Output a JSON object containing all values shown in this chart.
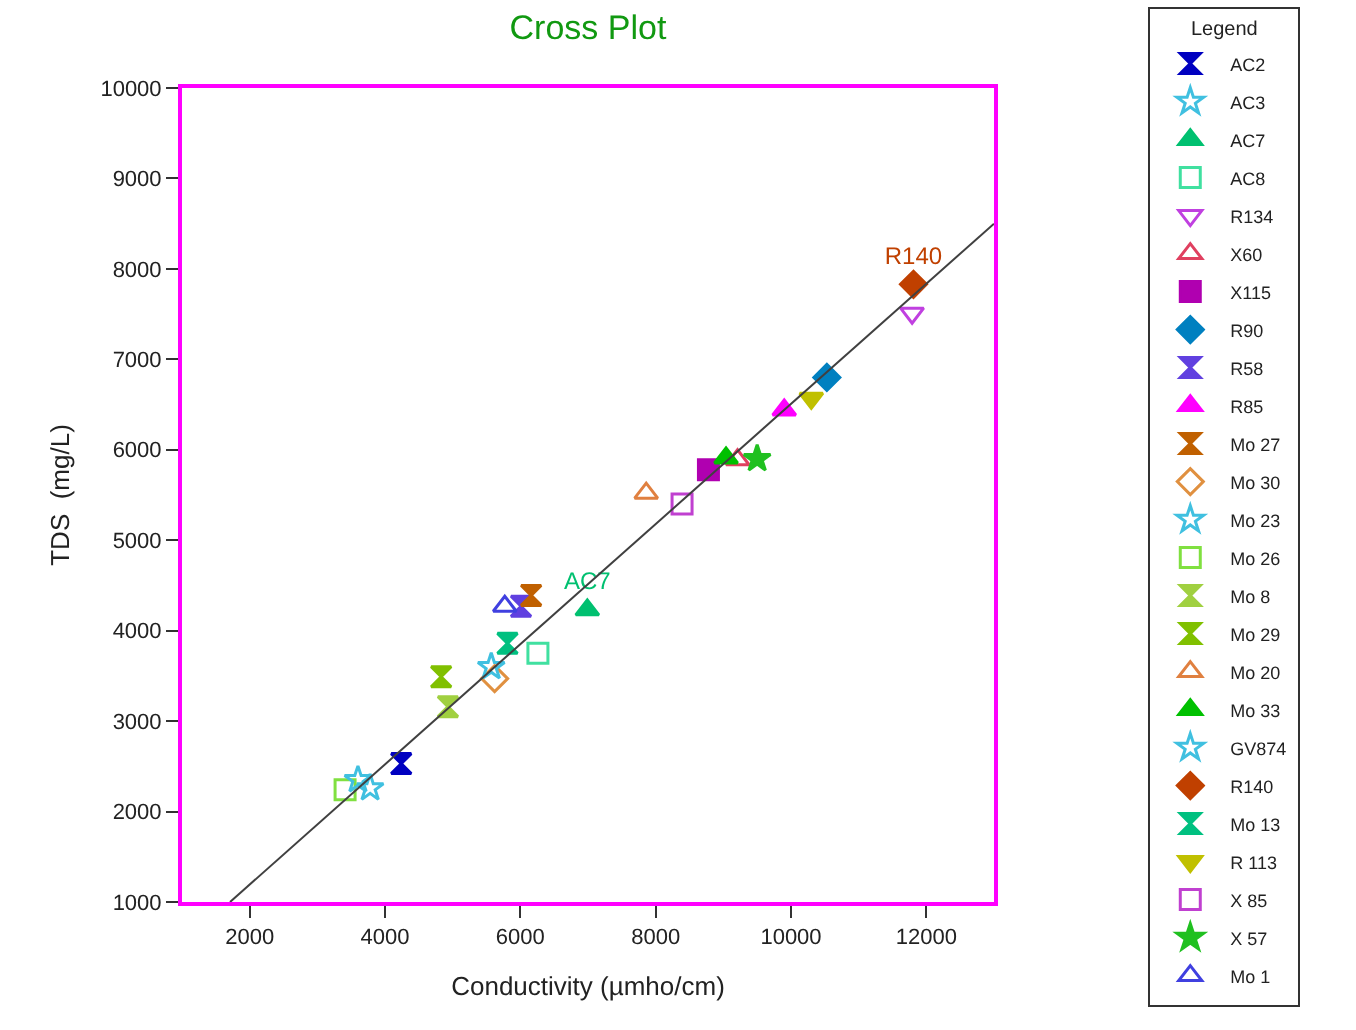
{
  "chart_data": {
    "type": "scatter",
    "title": "Cross Plot",
    "xlabel": "Conductivity (µmho/cm)",
    "ylabel": "TDS  (mg/L)",
    "legend_title": "Legend",
    "xlim": [
      1000,
      13000
    ],
    "xticks": [
      2000,
      4000,
      6000,
      8000,
      10000,
      12000
    ],
    "ylim": [
      1000,
      10000
    ],
    "yticks": [
      1000,
      2000,
      3000,
      4000,
      5000,
      6000,
      7000,
      8000,
      9000,
      10000
    ],
    "grid": false,
    "legend": "right",
    "series": [
      {
        "name": "AC2",
        "color": "#0000c0",
        "x": [
          4240
        ],
        "values": [
          2530
        ]
      },
      {
        "name": "AC3",
        "color": "#40c0e0",
        "marker": "star-open",
        "x": [
          3780
        ],
        "values": [
          2260
        ]
      },
      {
        "name": "AC7",
        "color": "#00c070",
        "marker": "triangle-up",
        "x": [
          6990
        ],
        "values": [
          4230
        ],
        "value_labels": [
          "AC7"
        ]
      },
      {
        "name": "AC8",
        "color": "#40e0a0",
        "marker": "square-open",
        "x": [
          6260
        ],
        "values": [
          3750
        ]
      },
      {
        "name": "R134",
        "color": "#c040e0",
        "marker": "triangle-down-open",
        "x": [
          11790
        ],
        "values": [
          7510
        ]
      },
      {
        "name": "X60",
        "color": "#e04060",
        "marker": "triangle-up-open",
        "x": [
          9210
        ],
        "values": [
          5890
        ]
      },
      {
        "name": "X115",
        "color": "#b000b0",
        "marker": "square",
        "x": [
          8780
        ],
        "values": [
          5780
        ]
      },
      {
        "name": "R90",
        "color": "#0080c0",
        "marker": "diamond",
        "x": [
          10530
        ],
        "values": [
          6800
        ]
      },
      {
        "name": "R58",
        "color": "#6040e0",
        "x": [
          6010
        ],
        "values": [
          4270
        ]
      },
      {
        "name": "R85",
        "color": "#ff00ff",
        "marker": "triangle-up",
        "x": [
          9900
        ],
        "values": [
          6440
        ]
      },
      {
        "name": "Mo 27",
        "color": "#c06000",
        "x": [
          6160
        ],
        "values": [
          4390
        ]
      },
      {
        "name": "Mo 30",
        "color": "#e09040",
        "marker": "diamond-open",
        "x": [
          5620
        ],
        "values": [
          3470
        ]
      },
      {
        "name": "Mo 23",
        "color": "#40c0e0",
        "marker": "star-open",
        "x": [
          5570
        ],
        "values": [
          3600
        ]
      },
      {
        "name": "Mo 26",
        "color": "#80e040",
        "marker": "square-open",
        "x": [
          3410
        ],
        "values": [
          2240
        ]
      },
      {
        "name": "Mo 8",
        "color": "#a0d040",
        "x": [
          4930
        ],
        "values": [
          3160
        ]
      },
      {
        "name": "Mo 29",
        "color": "#80c000",
        "x": [
          4830
        ],
        "values": [
          3490
        ]
      },
      {
        "name": "Mo 20",
        "color": "#e08040",
        "marker": "triangle-up-open",
        "x": [
          7860
        ],
        "values": [
          5520
        ]
      },
      {
        "name": "Mo 33",
        "color": "#00c000",
        "marker": "triangle-up",
        "x": [
          9040
        ],
        "values": [
          5910
        ]
      },
      {
        "name": "GV874",
        "color": "#40c0e0",
        "marker": "star-open",
        "x": [
          3600
        ],
        "values": [
          2350
        ]
      },
      {
        "name": "R140",
        "color": "#c04000",
        "marker": "diamond",
        "x": [
          11810
        ],
        "values": [
          7830
        ],
        "value_labels": [
          "R140"
        ]
      },
      {
        "name": "Mo 13",
        "color": "#00c080",
        "x": [
          5810
        ],
        "values": [
          3860
        ]
      },
      {
        "name": "R 113",
        "color": "#c0c000",
        "marker": "triangle-down",
        "x": [
          10300
        ],
        "values": [
          6570
        ]
      },
      {
        "name": "X 85",
        "color": "#c040d0",
        "marker": "square-open",
        "x": [
          8390
        ],
        "values": [
          5400
        ]
      },
      {
        "name": "X 57",
        "color": "#20c020",
        "marker": "star",
        "x": [
          9500
        ],
        "values": [
          5900
        ]
      },
      {
        "name": "Mo 1",
        "color": "#4040e0",
        "marker": "triangle-up-open",
        "x": [
          5770
        ],
        "values": [
          4270
        ]
      },
      {
        "type": "line",
        "color": "#404040",
        "line_style": "solid",
        "marker": "none",
        "x": [
          1710,
          13000
        ],
        "values": [
          1000,
          8500
        ]
      }
    ]
  }
}
